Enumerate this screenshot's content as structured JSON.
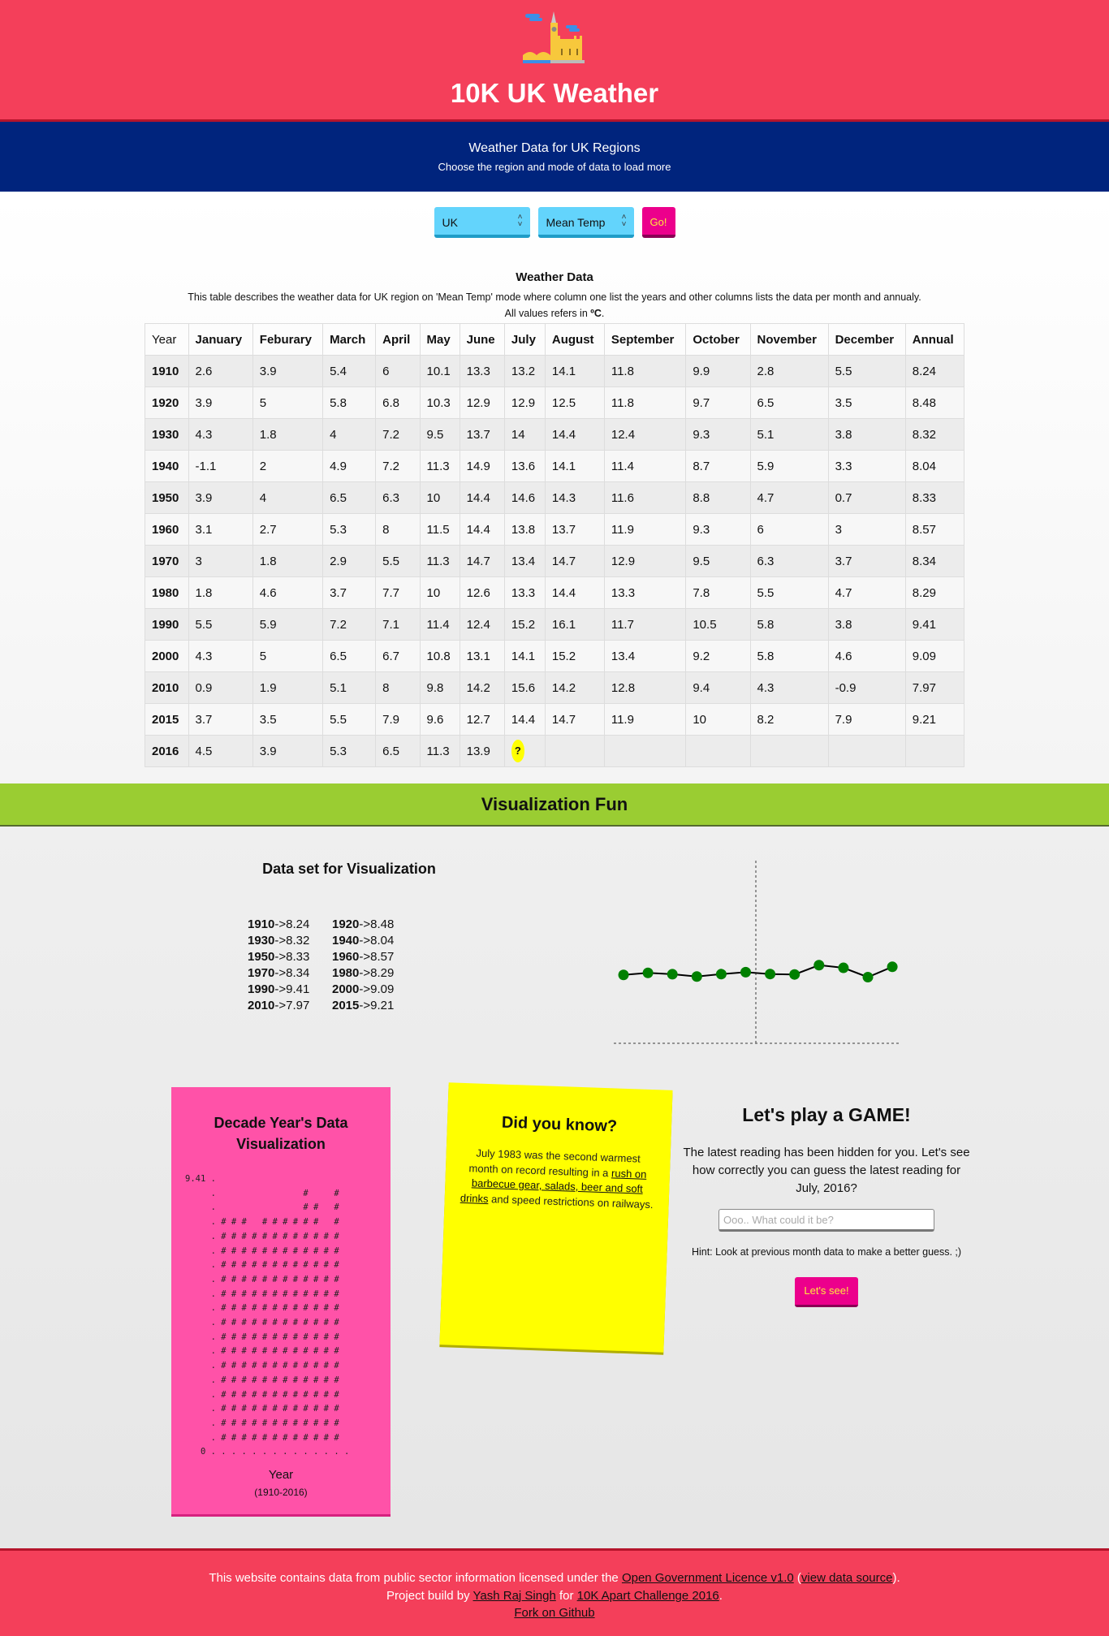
{
  "header": {
    "title": "10K UK Weather",
    "logo": "big-ben-icon"
  },
  "subheader": {
    "title": "Weather Data for UK Regions",
    "subtitle": "Choose the region and mode of data to load more"
  },
  "controls": {
    "region": "UK",
    "mode": "Mean Temp",
    "go_label": "Go!"
  },
  "table": {
    "title": "Weather Data",
    "description": "This table describes the weather data for UK region on 'Mean Temp' mode where column one list the years and other columns lists the data per month and annualy.",
    "units_prefix": "All values refers in ",
    "units": "ºC",
    "units_suffix": ".",
    "columns": [
      "Year",
      "January",
      "Feburary",
      "March",
      "April",
      "May",
      "June",
      "July",
      "August",
      "September",
      "October",
      "November",
      "December",
      "Annual"
    ],
    "rows": [
      [
        "1910",
        "2.6",
        "3.9",
        "5.4",
        "6",
        "10.1",
        "13.3",
        "13.2",
        "14.1",
        "11.8",
        "9.9",
        "2.8",
        "5.5",
        "8.24"
      ],
      [
        "1920",
        "3.9",
        "5",
        "5.8",
        "6.8",
        "10.3",
        "12.9",
        "12.9",
        "12.5",
        "11.8",
        "9.7",
        "6.5",
        "3.5",
        "8.48"
      ],
      [
        "1930",
        "4.3",
        "1.8",
        "4",
        "7.2",
        "9.5",
        "13.7",
        "14",
        "14.4",
        "12.4",
        "9.3",
        "5.1",
        "3.8",
        "8.32"
      ],
      [
        "1940",
        "-1.1",
        "2",
        "4.9",
        "7.2",
        "11.3",
        "14.9",
        "13.6",
        "14.1",
        "11.4",
        "8.7",
        "5.9",
        "3.3",
        "8.04"
      ],
      [
        "1950",
        "3.9",
        "4",
        "6.5",
        "6.3",
        "10",
        "14.4",
        "14.6",
        "14.3",
        "11.6",
        "8.8",
        "4.7",
        "0.7",
        "8.33"
      ],
      [
        "1960",
        "3.1",
        "2.7",
        "5.3",
        "8",
        "11.5",
        "14.4",
        "13.8",
        "13.7",
        "11.9",
        "9.3",
        "6",
        "3",
        "8.57"
      ],
      [
        "1970",
        "3",
        "1.8",
        "2.9",
        "5.5",
        "11.3",
        "14.7",
        "13.4",
        "14.7",
        "12.9",
        "9.5",
        "6.3",
        "3.7",
        "8.34"
      ],
      [
        "1980",
        "1.8",
        "4.6",
        "3.7",
        "7.7",
        "10",
        "12.6",
        "13.3",
        "14.4",
        "13.3",
        "7.8",
        "5.5",
        "4.7",
        "8.29"
      ],
      [
        "1990",
        "5.5",
        "5.9",
        "7.2",
        "7.1",
        "11.4",
        "12.4",
        "15.2",
        "16.1",
        "11.7",
        "10.5",
        "5.8",
        "3.8",
        "9.41"
      ],
      [
        "2000",
        "4.3",
        "5",
        "6.5",
        "6.7",
        "10.8",
        "13.1",
        "14.1",
        "15.2",
        "13.4",
        "9.2",
        "5.8",
        "4.6",
        "9.09"
      ],
      [
        "2010",
        "0.9",
        "1.9",
        "5.1",
        "8",
        "9.8",
        "14.2",
        "15.6",
        "14.2",
        "12.8",
        "9.4",
        "4.3",
        "-0.9",
        "7.97"
      ],
      [
        "2015",
        "3.7",
        "3.5",
        "5.5",
        "7.9",
        "9.6",
        "12.7",
        "14.4",
        "14.7",
        "11.9",
        "10",
        "8.2",
        "7.9",
        "9.21"
      ],
      [
        "2016",
        "4.5",
        "3.9",
        "5.3",
        "6.5",
        "11.3",
        "13.9",
        "?",
        "",
        "",
        "",
        "",
        "",
        ""
      ]
    ],
    "hidden_marker": "?",
    "hidden_color": "#ffff00"
  },
  "visualization": {
    "section_title": "Visualization Fun",
    "dataset_title": "Data set for Visualization",
    "dataset": [
      {
        "year": "1910",
        "value": "->8.24"
      },
      {
        "year": "1920",
        "value": "->8.48"
      },
      {
        "year": "1930",
        "value": "->8.32"
      },
      {
        "year": "1940",
        "value": "->8.04"
      },
      {
        "year": "1950",
        "value": "->8.33"
      },
      {
        "year": "1960",
        "value": "->8.57"
      },
      {
        "year": "1970",
        "value": "->8.34"
      },
      {
        "year": "1980",
        "value": "->8.29"
      },
      {
        "year": "1990",
        "value": "->9.41"
      },
      {
        "year": "2000",
        "value": "->9.09"
      },
      {
        "year": "2010",
        "value": "->7.97"
      },
      {
        "year": "2015",
        "value": "->9.21"
      }
    ]
  },
  "chart_data": {
    "type": "line",
    "x": [
      "1910",
      "1920",
      "1930",
      "1940",
      "1950",
      "1960",
      "1970",
      "1980",
      "1990",
      "2000",
      "2010",
      "2015"
    ],
    "values": [
      8.24,
      8.48,
      8.32,
      8.04,
      8.33,
      8.57,
      8.34,
      8.29,
      9.41,
      9.09,
      7.97,
      9.21
    ],
    "ylim": [
      0,
      22
    ],
    "marker_color": "#008000",
    "line_color": "#000000",
    "axes": "dotted",
    "grid": false
  },
  "decade_card": {
    "title": "Decade Year's Data Visualization",
    "ascii": [
      "9.41 .",
      "     .                 #     #",
      "     .                 # #   #",
      "     . # # #   # # # # # #   #",
      "     . # # # # # # # # # # # #",
      "     . # # # # # # # # # # # #",
      "     . # # # # # # # # # # # #",
      "     . # # # # # # # # # # # #",
      "     . # # # # # # # # # # # #",
      "     . # # # # # # # # # # # #",
      "     . # # # # # # # # # # # #",
      "     . # # # # # # # # # # # #",
      "     . # # # # # # # # # # # #",
      "     . # # # # # # # # # # # #",
      "     . # # # # # # # # # # # #",
      "     . # # # # # # # # # # # #",
      "     . # # # # # # # # # # # #",
      "     . # # # # # # # # # # # #",
      "     . # # # # # # # # # # # #",
      "   0 . . . . . . . . . . . . . ."
    ],
    "xlabel": "Year",
    "range": "(1910-2016)",
    "color": "#ff52a8"
  },
  "did_you_know": {
    "title": "Did you know?",
    "text_before": "July 1983 was the second warmest month on record resulting in a ",
    "link": "rush on barbecue gear, salads, beer and soft drinks",
    "text_after": " and speed restrictions on railways.",
    "color": "#ffff00"
  },
  "game": {
    "title": "Let's play a GAME!",
    "text": "The latest reading has been hidden for you. Let's see how correctly you can guess the latest reading for July, 2016?",
    "input_value": "",
    "placeholder": "Ooo.. What could it be?",
    "hint": "Hint: Look at previous month data to make a better guess. ;)",
    "button": "Let's see!"
  },
  "footer": {
    "line1_before": "This website contains data from public sector information licensed under the ",
    "licence_link": "Open Government Licence v1.0",
    "paren_open": " (",
    "source_link": "view data source",
    "paren_close": ").",
    "line2_before": "Project build by ",
    "author_link": "Yash Raj Singh",
    "line2_mid": " for ",
    "challenge_link": "10K Apart Challenge 2016",
    "line2_end": ".",
    "github_link": "Fork on Github"
  },
  "colors": {
    "header": "#f43f5a",
    "subheader": "#00247d",
    "band": "#9acd32",
    "select": "#63d4fc",
    "button": "#ec008c",
    "button_text": "#ffeb3b"
  }
}
